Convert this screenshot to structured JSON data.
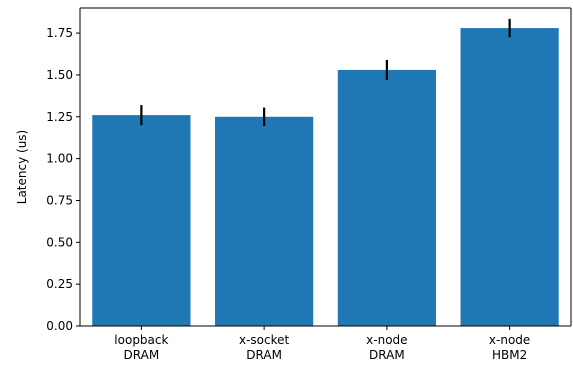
{
  "chart_data": {
    "type": "bar",
    "categories": [
      "loopback\nDRAM",
      "x-socket\nDRAM",
      "x-node\nDRAM",
      "x-node\nHBM2"
    ],
    "values": [
      1.26,
      1.25,
      1.53,
      1.78
    ],
    "errors": [
      0.06,
      0.055,
      0.06,
      0.055
    ],
    "xlabel": "",
    "ylabel": "Latency (us)",
    "ylim": [
      0,
      1.9
    ],
    "yticks": [
      0.0,
      0.25,
      0.5,
      0.75,
      1.0,
      1.25,
      1.5,
      1.75
    ],
    "ytick_labels": [
      "0.00",
      "0.25",
      "0.50",
      "0.75",
      "1.00",
      "1.25",
      "1.50",
      "1.75"
    ],
    "grid": false,
    "bar_color": "#1f77b4",
    "error_color": "#000000"
  }
}
